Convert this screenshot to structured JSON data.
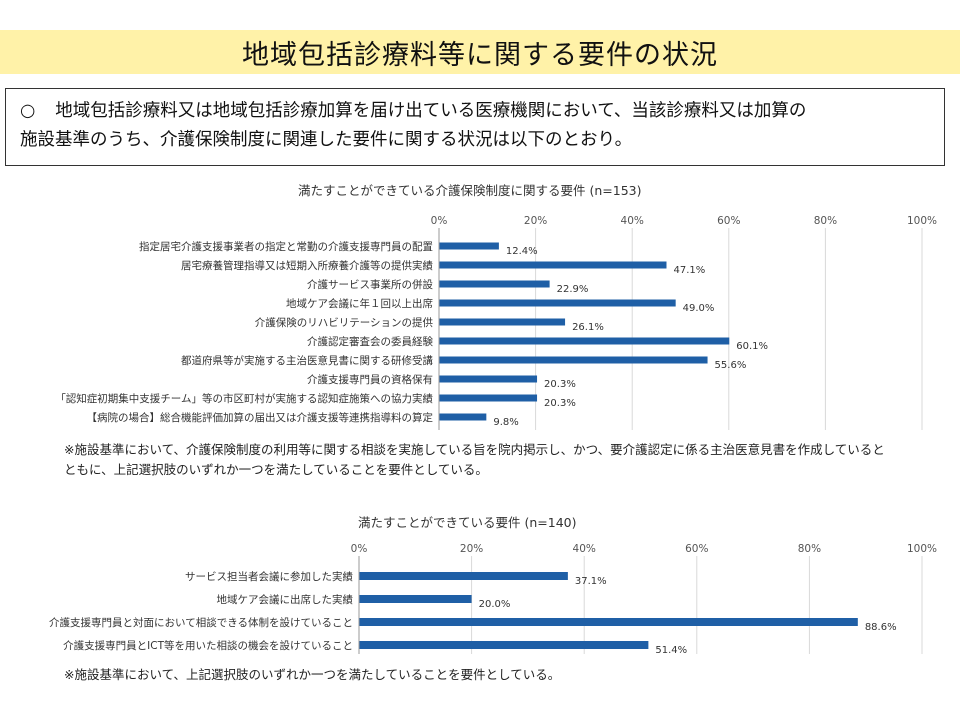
{
  "page": {
    "title": "地域包括診療料等に関する要件の状況",
    "intro_bullet": "○",
    "intro_line1": "地域包括診療料又は地域包括診療加算を届け出ている医療機関において、当該診療料又は加算の",
    "intro_line2": "施設基準のうち、介護保険制度に関連した要件に関する状況は以下のとおり。",
    "colors": {
      "bar": "#1f5fa6",
      "title_band": "#fff2a8",
      "grid": "#d9d9d9"
    }
  },
  "chart_data": [
    {
      "type": "bar",
      "orientation": "horizontal",
      "title": "満たすことができている介護保険制度に関する要件 (n=153)",
      "categories": [
        "指定居宅介護支援事業者の指定と常勤の介護支援専門員の配置",
        "居宅療養管理指導又は短期入所療養介護等の提供実績",
        "介護サービス事業所の併設",
        "地域ケア会議に年１回以上出席",
        "介護保険のリハビリテーションの提供",
        "介護認定審査会の委員経験",
        "都道府県等が実施する主治医意見書に関する研修受講",
        "介護支援専門員の資格保有",
        "「認知症初期集中支援チーム」等の市区町村が実施する認知症施策への協力実績",
        "【病院の場合】総合機能評価加算の届出又は介護支援等連携指導料の算定"
      ],
      "values": [
        12.4,
        47.1,
        22.9,
        49.0,
        26.1,
        60.1,
        55.6,
        20.3,
        20.3,
        9.8
      ],
      "value_labels": [
        "12.4%",
        "47.1%",
        "22.9%",
        "49.0%",
        "26.1%",
        "60.1%",
        "55.6%",
        "20.3%",
        "20.3%",
        "9.8%"
      ],
      "xlim": [
        0,
        100
      ],
      "ticks": [
        "0%",
        "20%",
        "40%",
        "60%",
        "80%",
        "100%"
      ],
      "grid": true,
      "axis_position": "top",
      "note_line1": "※施設基準において、介護保険制度の利用等に関する相談を実施している旨を院内掲示し、かつ、要介護認定に係る主治医意見書を作成していると",
      "note_line2": "ともに、上記選択肢のいずれか一つを満たしていることを要件としている。"
    },
    {
      "type": "bar",
      "orientation": "horizontal",
      "title": "満たすことができている要件 (n=140)",
      "categories": [
        "サービス担当者会議に参加した実績",
        "地域ケア会議に出席した実績",
        "介護支援専門員と対面において相談できる体制を設けていること",
        "介護支援専門員とICT等を用いた相談の機会を設けていること"
      ],
      "values": [
        37.1,
        20.0,
        88.6,
        51.4
      ],
      "value_labels": [
        "37.1%",
        "20.0%",
        "88.6%",
        "51.4%"
      ],
      "xlim": [
        0,
        100
      ],
      "ticks": [
        "0%",
        "20%",
        "40%",
        "60%",
        "80%",
        "100%"
      ],
      "grid": true,
      "axis_position": "top",
      "note_line1": "※施設基準において、上記選択肢のいずれか一つを満たしていることを要件としている。"
    }
  ]
}
